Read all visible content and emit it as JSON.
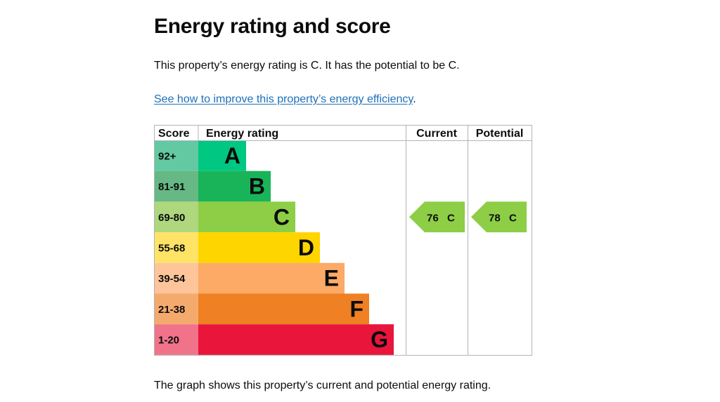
{
  "page": {
    "title": "Energy rating and score",
    "summary": "This property’s energy rating is C. It has the potential to be C.",
    "improve_link": "See how to improve this property’s energy efficiency",
    "improve_link_suffix": ".",
    "caption": "The graph shows this property’s current and potential energy rating."
  },
  "chart_data": {
    "type": "bar",
    "headers": {
      "score": "Score",
      "rating": "Energy rating",
      "current": "Current",
      "potential": "Potential"
    },
    "bands": [
      {
        "score": "92+",
        "letter": "A",
        "value": 1,
        "color": "#00c781"
      },
      {
        "score": "81-91",
        "letter": "B",
        "value": 2,
        "color": "#19b459"
      },
      {
        "score": "69-80",
        "letter": "C",
        "value": 3,
        "color": "#8dce46"
      },
      {
        "score": "55-68",
        "letter": "D",
        "value": 4,
        "color": "#ffd500"
      },
      {
        "score": "39-54",
        "letter": "E",
        "value": 5,
        "color": "#fcaa65"
      },
      {
        "score": "21-38",
        "letter": "F",
        "value": 6,
        "color": "#ef8023"
      },
      {
        "score": "1-20",
        "letter": "G",
        "value": 7,
        "color": "#e9153b"
      }
    ],
    "score_colors": [
      "#63c9a3",
      "#66b885",
      "#aed77e",
      "#ffe366",
      "#fdc599",
      "#f5aa6d",
      "#f0738a"
    ],
    "current": {
      "score": "76",
      "letter": "C",
      "band": "C",
      "color": "#8dce46"
    },
    "potential": {
      "score": "78",
      "letter": "C",
      "band": "C",
      "color": "#8dce46"
    }
  }
}
